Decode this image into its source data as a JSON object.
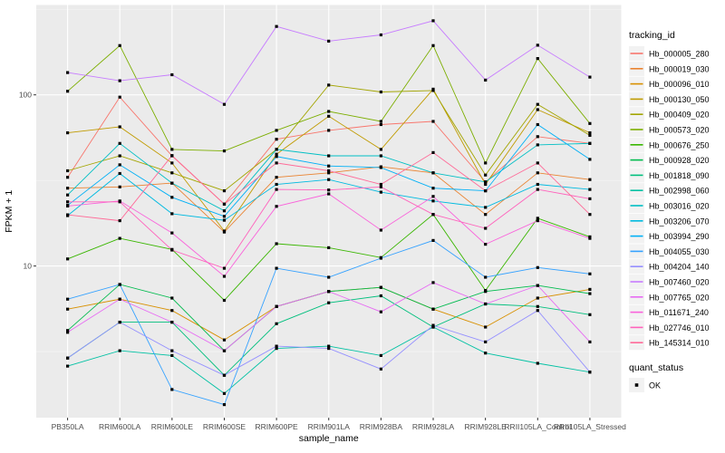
{
  "chart_data": {
    "type": "line",
    "title": "",
    "xlabel": "sample_name",
    "ylabel": "FPKM + 1",
    "y_scale": "log10",
    "ylim": [
      1.3,
      335
    ],
    "y_major_ticks": [
      10,
      100
    ],
    "y_tick_labels": [
      "10",
      "100"
    ],
    "y_minor_gridlines": [
      3.162,
      31.62,
      316.2
    ],
    "grid": "major-white-on-gray-panel",
    "panel_bg": "#EBEBEB",
    "gridline_color": "#FFFFFF",
    "point_marker": "black-square",
    "point_color": "#000000",
    "legend_position": "right",
    "legend_key_bg": "#F2F2F2",
    "categories": [
      "PB350LA",
      "RRIM600LA",
      "RRIM600LE",
      "RRIM600SE",
      "RRIM600PE",
      "RRIM901LA",
      "RRIM928BA",
      "RRIM928LA",
      "RRIM928LE",
      "RRII105LA_Control",
      "RRII105LA_Stressed"
    ],
    "legend1": {
      "title": "tracking_id"
    },
    "legend2": {
      "title": "quant_status",
      "items": [
        {
          "label": "OK",
          "marker": "black-square"
        }
      ]
    },
    "series": [
      {
        "name": "Hb_000005_280",
        "color": "#F8766D",
        "values": [
          33,
          97,
          44,
          23,
          55,
          62,
          67,
          70,
          31,
          57,
          52
        ]
      },
      {
        "name": "Hb_000019_030",
        "color": "#EA8331",
        "values": [
          28.5,
          29,
          30.5,
          15.8,
          33,
          35,
          38,
          35,
          20,
          35,
          32
        ]
      },
      {
        "name": "Hb_000096_010",
        "color": "#D89000",
        "values": [
          5.6,
          6.4,
          5.5,
          3.7,
          5.8,
          7.1,
          7.5,
          5.6,
          4.4,
          6.5,
          7.3
        ]
      },
      {
        "name": "Hb_000130_050",
        "color": "#C09B00",
        "values": [
          60,
          65,
          40,
          16,
          45,
          75,
          48,
          108,
          30,
          82,
          60
        ]
      },
      {
        "name": "Hb_000409_020",
        "color": "#A3A500",
        "values": [
          36,
          44,
          35,
          27.5,
          48,
          114,
          104,
          106,
          34,
          88,
          58
        ]
      },
      {
        "name": "Hb_000573_020",
        "color": "#7CAE00",
        "values": [
          105,
          194,
          48,
          47,
          62,
          80,
          70,
          194,
          40,
          163,
          68
        ]
      },
      {
        "name": "Hb_000676_250",
        "color": "#39B600",
        "values": [
          11,
          14.5,
          12.5,
          6.3,
          13.5,
          12.8,
          11.2,
          20,
          7.2,
          19,
          14.8
        ]
      },
      {
        "name": "Hb_000928_020",
        "color": "#00BB4E",
        "values": [
          4.2,
          7.8,
          6.5,
          3.2,
          5.8,
          7.1,
          7.5,
          5.6,
          7.1,
          7.7,
          6.9
        ]
      },
      {
        "name": "Hb_001818_090",
        "color": "#00BF7D",
        "values": [
          2.9,
          4.7,
          4.7,
          2.3,
          4.6,
          6.1,
          6.7,
          4.4,
          6.0,
          5.8,
          5.2
        ]
      },
      {
        "name": "Hb_002998_060",
        "color": "#00C1A3",
        "values": [
          2.6,
          3.2,
          3.0,
          1.8,
          3.3,
          3.4,
          3.0,
          4.4,
          3.1,
          2.7,
          2.4
        ]
      },
      {
        "name": "Hb_003016_020",
        "color": "#00BFC4",
        "values": [
          26,
          52,
          30.5,
          21,
          48,
          44,
          44,
          35,
          31,
          51,
          52
        ]
      },
      {
        "name": "Hb_003206_070",
        "color": "#00BAE0",
        "values": [
          19.7,
          34.7,
          20.2,
          18.5,
          30,
          32,
          27,
          24,
          22,
          30,
          28
        ]
      },
      {
        "name": "Hb_003994_290",
        "color": "#00B0F6",
        "values": [
          22.6,
          39,
          25.2,
          19.5,
          43.6,
          38.4,
          37.6,
          28.5,
          27.5,
          67,
          42
        ]
      },
      {
        "name": "Hb_004055_030",
        "color": "#35A2FF",
        "values": [
          6.4,
          7.8,
          1.9,
          1.55,
          9.7,
          8.6,
          11.1,
          14.1,
          8.6,
          9.8,
          9.0
        ]
      },
      {
        "name": "Hb_004204_140",
        "color": "#9590FF",
        "values": [
          2.9,
          4.7,
          3.2,
          2.3,
          3.4,
          3.3,
          2.5,
          4.5,
          3.6,
          5.5,
          2.4
        ]
      },
      {
        "name": "Hb_007460_020",
        "color": "#C77CFF",
        "values": [
          135,
          121,
          131,
          88,
          251,
          206,
          224,
          271,
          122,
          195,
          127
        ]
      },
      {
        "name": "Hb_007765_020",
        "color": "#E76BF3",
        "values": [
          4.1,
          6.4,
          4.7,
          3.2,
          5.8,
          7.1,
          5.4,
          8.0,
          6.0,
          7.7,
          3.6
        ]
      },
      {
        "name": "Hb_011671_240",
        "color": "#FA62DB",
        "values": [
          22.4,
          24,
          15.6,
          8.7,
          22.3,
          26.4,
          16.2,
          25.5,
          13.4,
          18.4,
          14.5
        ]
      },
      {
        "name": "Hb_027746_010",
        "color": "#FF62BC",
        "values": [
          23.7,
          23.7,
          12.4,
          9.7,
          28,
          27.8,
          29,
          20,
          16.6,
          28,
          24.7
        ]
      },
      {
        "name": "Hb_145314_010",
        "color": "#FF6A98",
        "values": [
          19.9,
          18.4,
          44.2,
          23,
          40,
          36,
          30,
          46,
          27.5,
          40,
          20
        ]
      }
    ]
  }
}
